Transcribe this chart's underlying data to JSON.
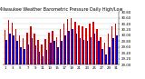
{
  "title": "Milwaukee Weather Barometric Pressure Daily High/Low",
  "title_fontsize": 3.5,
  "bar_width": 0.38,
  "ylim": [
    29.0,
    30.8
  ],
  "ytick_vals": [
    29.0,
    29.2,
    29.4,
    29.6,
    29.8,
    30.0,
    30.2,
    30.4,
    30.6,
    30.8
  ],
  "ytick_labels": [
    "29.00",
    "29.20",
    "29.40",
    "29.60",
    "29.80",
    "30.00",
    "30.20",
    "30.40",
    "30.60",
    "30.80"
  ],
  "tick_fontsize": 2.8,
  "background_color": "#ffffff",
  "color_high": "#dd0000",
  "color_low": "#0000cc",
  "days": [
    1,
    2,
    3,
    4,
    5,
    6,
    7,
    8,
    9,
    10,
    11,
    12,
    13,
    14,
    15,
    16,
    17,
    18,
    19,
    20,
    21,
    22,
    23,
    24,
    25,
    26,
    27,
    28,
    29,
    30,
    31
  ],
  "highs": [
    30.18,
    30.52,
    30.42,
    30.2,
    30.0,
    29.9,
    30.1,
    30.3,
    30.05,
    29.85,
    29.7,
    29.88,
    30.1,
    30.15,
    29.95,
    30.2,
    30.4,
    30.55,
    30.58,
    30.45,
    30.35,
    30.3,
    30.25,
    30.4,
    30.45,
    30.2,
    29.95,
    29.75,
    30.05,
    30.3,
    30.4
  ],
  "lows": [
    29.85,
    30.05,
    30.0,
    29.8,
    29.6,
    29.55,
    29.7,
    29.9,
    29.65,
    29.45,
    29.3,
    29.5,
    29.75,
    29.8,
    29.6,
    29.8,
    30.0,
    30.15,
    30.2,
    30.05,
    29.9,
    29.85,
    29.8,
    29.95,
    30.05,
    29.8,
    29.55,
    29.35,
    29.6,
    29.9,
    30.0
  ]
}
